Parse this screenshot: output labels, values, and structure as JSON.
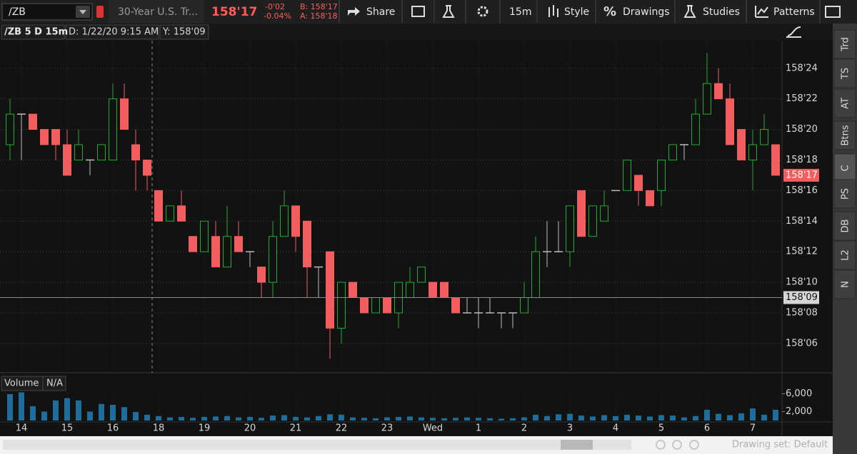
{
  "toolbar": {
    "symbol": "/ZB",
    "description": "30-Year U.S. Tr...",
    "last": "158'17",
    "net_change": "-0'02",
    "pct_change": "-0.04%",
    "bid": "B: 158'17",
    "ask": "A: 158'18",
    "share": "Share",
    "timeframe": "15m",
    "style": "Style",
    "drawings": "Drawings",
    "studies": "Studies",
    "patterns": "Patterns"
  },
  "chart_header": {
    "symbol_period": "/ZB 5 D 15m",
    "date": "D: 1/22/20 9:15 AM",
    "price": "Y: 158'09"
  },
  "chart_data": {
    "type": "candlestick",
    "categories": [
      null,
      "14",
      null,
      null,
      null,
      "15",
      null,
      null,
      null,
      "16",
      null,
      null,
      null,
      "18",
      null,
      null,
      null,
      "19",
      null,
      null,
      null,
      "20",
      null,
      null,
      null,
      "21",
      null,
      null,
      null,
      "22",
      null,
      null,
      null,
      "23",
      null,
      null,
      null,
      "Wed",
      null,
      null,
      null,
      "1",
      null,
      null,
      null,
      "2",
      null,
      null,
      null,
      "3",
      null,
      null,
      null,
      "4",
      null,
      null,
      null,
      "5",
      null,
      null,
      null,
      "6",
      null,
      null,
      null,
      "7",
      null,
      null
    ],
    "open": [
      158.59375,
      158.65625,
      158.65625,
      158.625,
      158.625,
      158.59375,
      158.5625,
      158.5625,
      158.5625,
      158.5625,
      158.6875,
      158.59375,
      158.5625,
      158.5,
      158.4375,
      158.46875,
      158.40625,
      158.375,
      158.40625,
      158.34375,
      158.40625,
      158.375,
      158.34375,
      158.3125,
      158.40625,
      158.46875,
      158.4375,
      158.34375,
      158.375,
      158.21875,
      158.3125,
      158.28125,
      158.25,
      158.28125,
      158.25,
      158.28125,
      158.3125,
      158.3125,
      158.3125,
      158.28125,
      158.25,
      158.25,
      158.25,
      158.25,
      158.25,
      158.25,
      158.28125,
      158.375,
      158.375,
      158.375,
      158.5,
      158.40625,
      158.4375,
      158.5,
      158.5,
      158.53125,
      158.5,
      158.5,
      158.5625,
      158.59375,
      158.59375,
      158.65625,
      158.71875,
      158.6875,
      158.625,
      158.5625,
      158.59375,
      158.59375
    ],
    "high": [
      158.6875,
      158.65625,
      158.65625,
      158.625,
      158.625,
      158.625,
      158.625,
      158.5625,
      158.59375,
      158.71875,
      158.71875,
      158.625,
      158.5625,
      158.5,
      158.46875,
      158.5,
      158.40625,
      158.4375,
      158.4375,
      158.46875,
      158.4375,
      158.375,
      158.34375,
      158.4375,
      158.5,
      158.46875,
      158.4375,
      158.34375,
      158.375,
      158.3125,
      158.3125,
      158.28125,
      158.28125,
      158.28125,
      158.3125,
      158.34375,
      158.34375,
      158.3125,
      158.3125,
      158.28125,
      158.28125,
      158.28125,
      158.28125,
      158.25,
      158.25,
      158.3125,
      158.40625,
      158.4375,
      158.4375,
      158.46875,
      158.5,
      158.46875,
      158.5,
      158.5,
      158.5625,
      158.53125,
      158.5,
      158.5625,
      158.59375,
      158.59375,
      158.6875,
      158.78125,
      158.75,
      158.71875,
      158.625,
      158.625,
      158.65625,
      158.59375
    ],
    "low": [
      158.5625,
      158.5625,
      158.625,
      158.59375,
      158.5625,
      158.53125,
      158.5625,
      158.53125,
      158.5625,
      158.5625,
      158.625,
      158.5,
      158.5,
      158.4375,
      158.4375,
      158.4375,
      158.375,
      158.375,
      158.34375,
      158.34375,
      158.375,
      158.34375,
      158.28125,
      158.28125,
      158.40625,
      158.375,
      158.28125,
      158.28125,
      158.15625,
      158.1875,
      158.28125,
      158.25,
      158.25,
      158.25,
      158.21875,
      158.28125,
      158.3125,
      158.28125,
      158.28125,
      158.25,
      158.25,
      158.21875,
      158.25,
      158.21875,
      158.21875,
      158.25,
      158.28125,
      158.34375,
      158.375,
      158.34375,
      158.40625,
      158.40625,
      158.4375,
      158.5,
      158.5,
      158.46875,
      158.46875,
      158.46875,
      158.5625,
      158.5625,
      158.59375,
      158.65625,
      158.6875,
      158.59375,
      158.5625,
      158.5,
      158.59375,
      158.53125
    ],
    "close": [
      158.65625,
      158.65625,
      158.625,
      158.59375,
      158.59375,
      158.53125,
      158.59375,
      158.5625,
      158.59375,
      158.6875,
      158.625,
      158.5625,
      158.53125,
      158.4375,
      158.46875,
      158.4375,
      158.375,
      158.4375,
      158.34375,
      158.40625,
      158.375,
      158.375,
      158.3125,
      158.40625,
      158.46875,
      158.40625,
      158.34375,
      158.34375,
      158.21875,
      158.3125,
      158.28125,
      158.25,
      158.28125,
      158.25,
      158.3125,
      158.3125,
      158.34375,
      158.28125,
      158.28125,
      158.25,
      158.25,
      158.25,
      158.25,
      158.25,
      158.25,
      158.28125,
      158.375,
      158.375,
      158.375,
      158.46875,
      158.40625,
      158.46875,
      158.46875,
      158.5,
      158.5625,
      158.5,
      158.46875,
      158.5625,
      158.59375,
      158.59375,
      158.65625,
      158.71875,
      158.6875,
      158.59375,
      158.5625,
      158.59375,
      158.625,
      158.53125
    ],
    "up_color": "#1fae2a",
    "down_color": "#f25d5d",
    "flat_color": "#bdbdbd",
    "ylim": [
      158.132,
      158.805
    ],
    "yticks": [
      {
        "value": 158.1875,
        "label": "158'06"
      },
      {
        "value": 158.25,
        "label": "158'08"
      },
      {
        "value": 158.3125,
        "label": "158'10"
      },
      {
        "value": 158.375,
        "label": "158'12"
      },
      {
        "value": 158.4375,
        "label": "158'14"
      },
      {
        "value": 158.5,
        "label": "158'16"
      },
      {
        "value": 158.5625,
        "label": "158'18"
      },
      {
        "value": 158.625,
        "label": "158'20"
      },
      {
        "value": 158.6875,
        "label": "158'22"
      },
      {
        "value": 158.75,
        "label": "158'24"
      }
    ],
    "grid": true,
    "last_price": 158.53125,
    "last_price_label": "158'17",
    "cursor_price": 158.28125,
    "cursor_price_label": "158'09",
    "volume": {
      "title": "Volume",
      "note": "N/A",
      "color": "#1f6d9b",
      "ylim": [
        0,
        6700
      ],
      "yticks": [
        {
          "value": 2000,
          "label": "2,000"
        },
        {
          "value": 6000,
          "label": "6,000"
        }
      ],
      "values": [
        5900,
        6300,
        3200,
        2000,
        4500,
        5000,
        4500,
        2000,
        3700,
        3500,
        3000,
        1900,
        1300,
        1000,
        700,
        800,
        600,
        800,
        900,
        1000,
        700,
        800,
        600,
        1100,
        1200,
        800,
        700,
        1000,
        1400,
        1300,
        700,
        600,
        500,
        700,
        800,
        900,
        700,
        600,
        500,
        600,
        700,
        600,
        500,
        400,
        500,
        700,
        1300,
        1000,
        1400,
        1500,
        1100,
        900,
        1200,
        1000,
        1300,
        1100,
        900,
        1200,
        1100,
        700,
        1000,
        2400,
        1500,
        1200,
        1600,
        2700,
        1300,
        2400
      ]
    }
  },
  "side_tabs": [
    "Trd",
    "TS",
    "AT",
    "Btns",
    "C",
    "PS",
    "DB",
    "L2",
    "N"
  ],
  "footer": {
    "drawing_set": "Drawing set: Default"
  }
}
